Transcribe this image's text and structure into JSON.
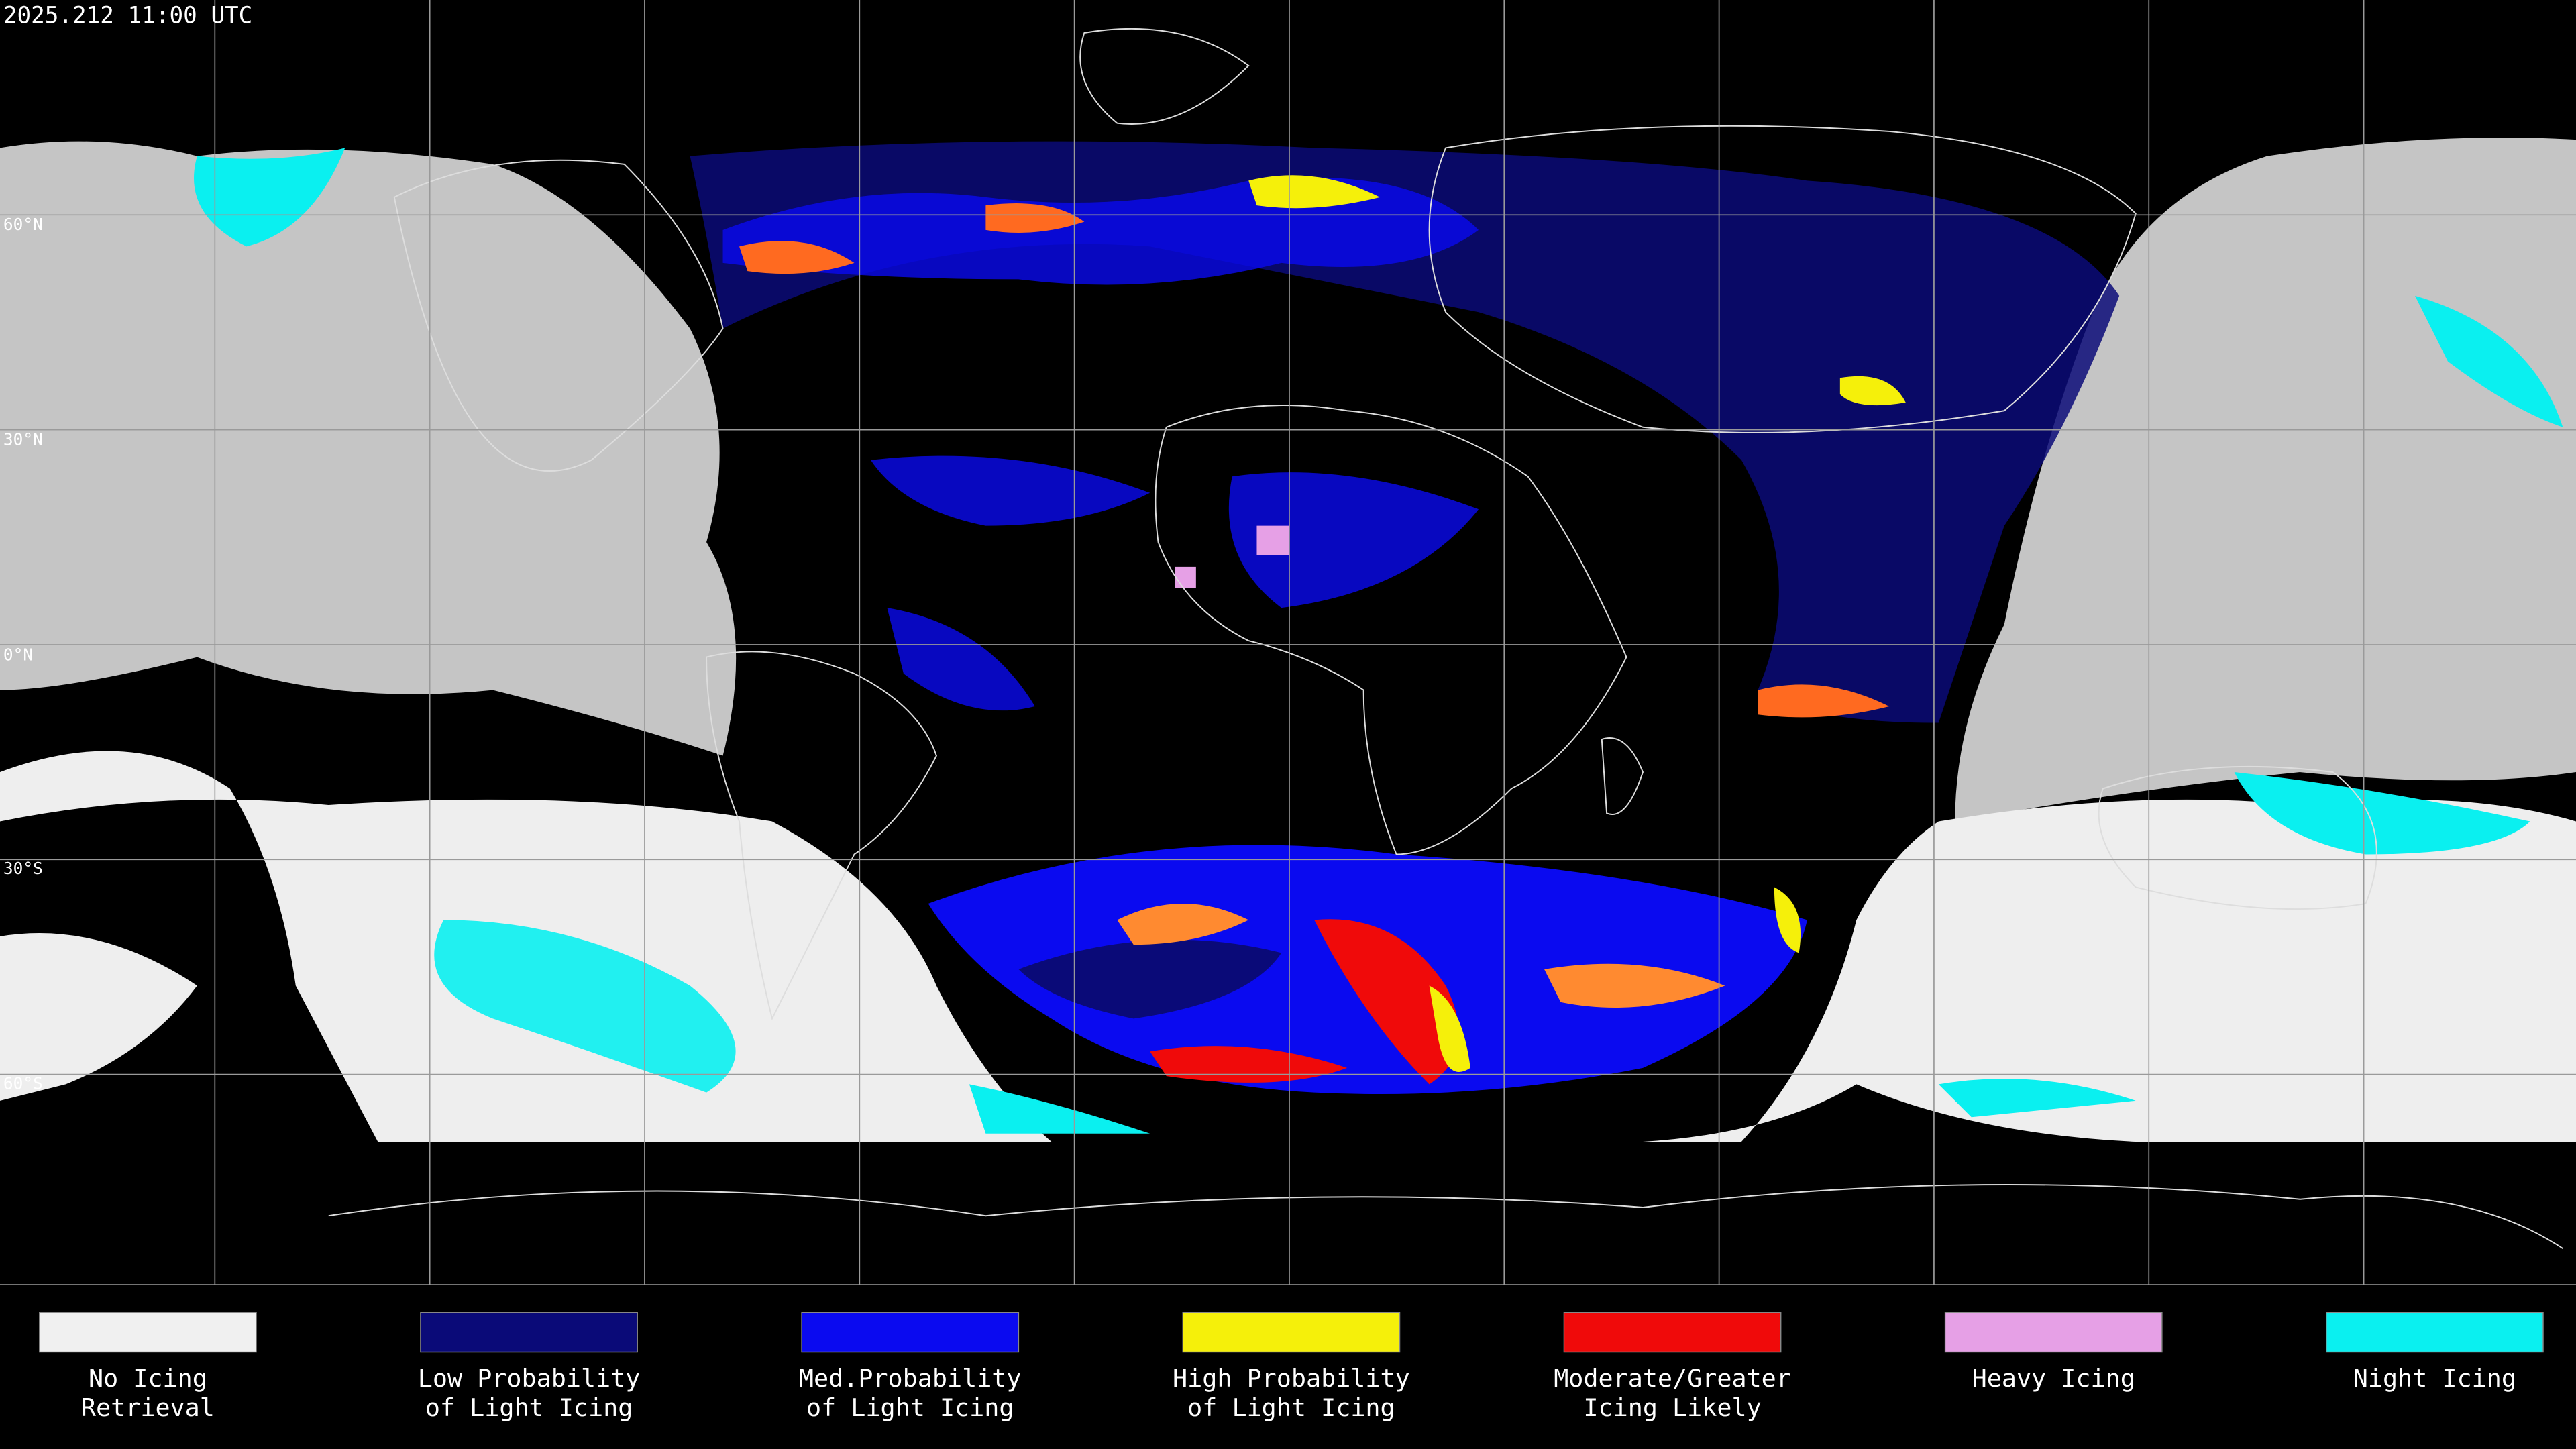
{
  "header": {
    "title": "2025.212 11:00 UTC"
  },
  "lat_labels": [
    "60°N",
    "30°N",
    "0°N",
    "30°S",
    "60°S"
  ],
  "legend": [
    {
      "lines": [
        "No Icing",
        "Retrieval"
      ],
      "color": "#f0f0f0"
    },
    {
      "lines": [
        "Low Probability",
        "of Light Icing"
      ],
      "color": "#0a0a78"
    },
    {
      "lines": [
        "Med.Probability",
        "of Light Icing"
      ],
      "color": "#0a0af0"
    },
    {
      "lines": [
        "High Probability",
        "of Light Icing"
      ],
      "color": "#f5f00a"
    },
    {
      "lines": [
        "Moderate/Greater",
        "Icing Likely"
      ],
      "color": "#f00a0a"
    },
    {
      "lines": [
        "Heavy Icing"
      ],
      "color": "#e6a0e6"
    },
    {
      "lines": [
        "Night Icing"
      ],
      "color": "#0af0f0"
    }
  ]
}
